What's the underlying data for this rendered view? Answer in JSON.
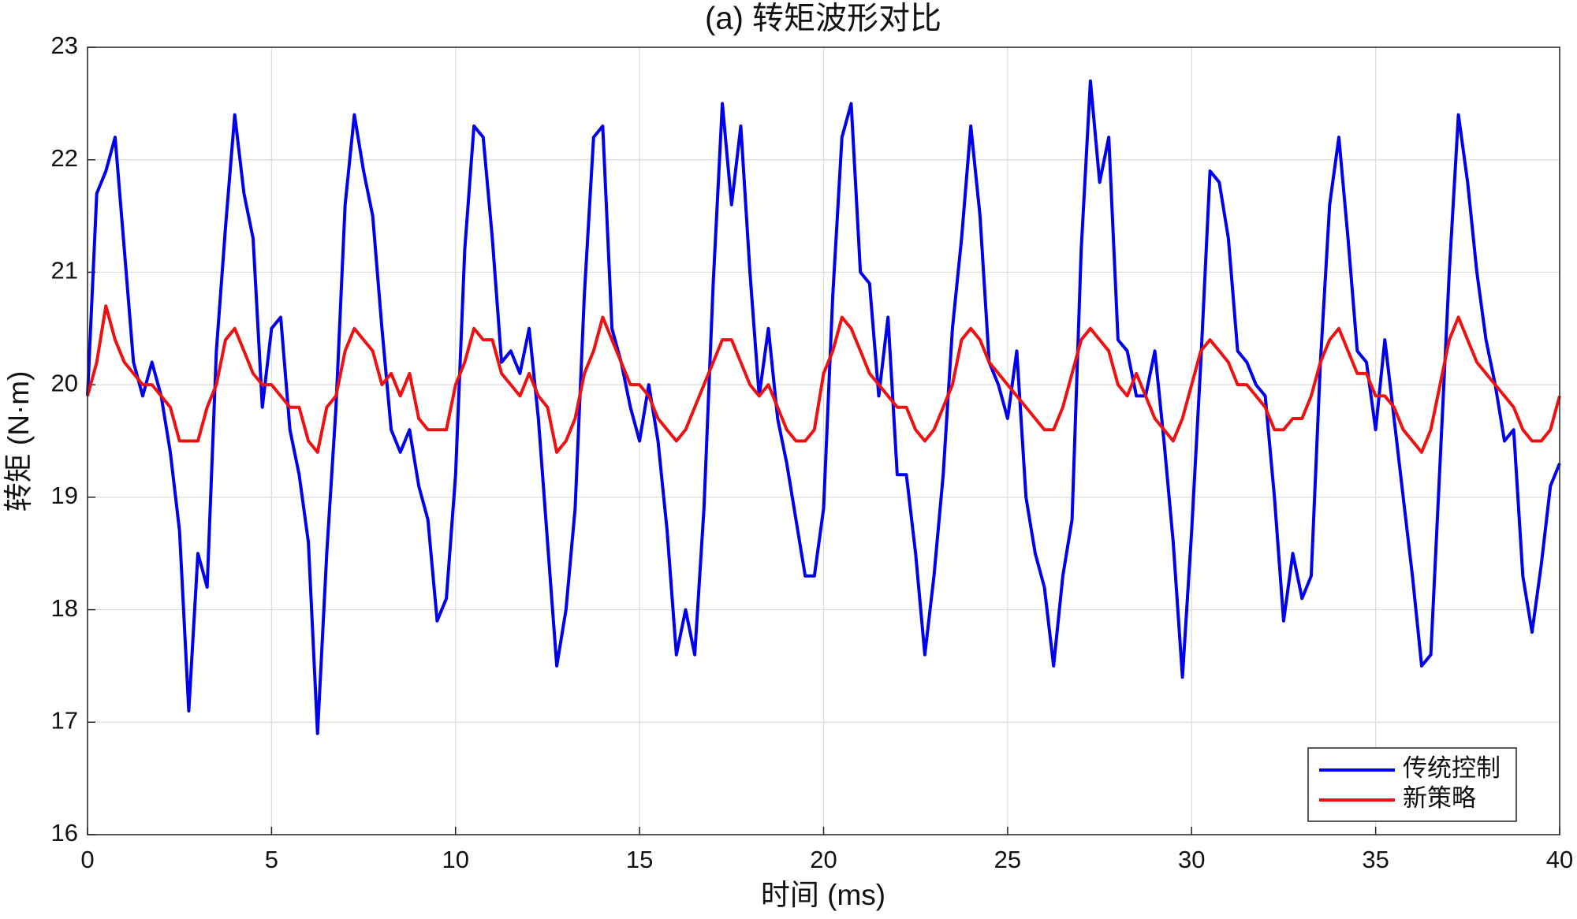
{
  "chart_data": {
    "type": "line",
    "title": "(a) 转矩波形对比",
    "xlabel": "时间 (ms)",
    "ylabel": "转矩 (N·m)",
    "x": [
      0,
      0.25,
      0.5,
      0.75,
      1,
      1.25,
      1.5,
      1.75,
      2,
      2.25,
      2.5,
      2.75,
      3,
      3.25,
      3.5,
      3.75,
      4,
      4.25,
      4.5,
      4.75,
      5,
      5.25,
      5.5,
      5.75,
      6,
      6.25,
      6.5,
      6.75,
      7,
      7.25,
      7.5,
      7.75,
      8,
      8.25,
      8.5,
      8.75,
      9,
      9.25,
      9.5,
      9.75,
      10,
      10.25,
      10.5,
      10.75,
      11,
      11.25,
      11.5,
      11.75,
      12,
      12.25,
      12.5,
      12.75,
      13,
      13.25,
      13.5,
      13.75,
      14,
      14.25,
      14.5,
      14.75,
      15,
      15.25,
      15.5,
      15.75,
      16,
      16.25,
      16.5,
      16.75,
      17,
      17.25,
      17.5,
      17.75,
      18,
      18.25,
      18.5,
      18.75,
      19,
      19.25,
      19.5,
      19.75,
      20,
      20.25,
      20.5,
      20.75,
      21,
      21.25,
      21.5,
      21.75,
      22,
      22.25,
      22.5,
      22.75,
      23,
      23.25,
      23.5,
      23.75,
      24,
      24.25,
      24.5,
      24.75,
      25,
      25.25,
      25.5,
      25.75,
      26,
      26.25,
      26.5,
      26.75,
      27,
      27.25,
      27.5,
      27.75,
      28,
      28.25,
      28.5,
      28.75,
      29,
      29.25,
      29.5,
      29.75,
      30,
      30.25,
      30.5,
      30.75,
      31,
      31.25,
      31.5,
      31.75,
      32,
      32.25,
      32.5,
      32.75,
      33,
      33.25,
      33.5,
      33.75,
      34,
      34.25,
      34.5,
      34.75,
      35,
      35.25,
      35.5,
      35.75,
      36,
      36.25,
      36.5,
      36.75,
      37,
      37.25,
      37.5,
      37.75,
      38,
      38.25,
      38.5,
      38.75,
      39,
      39.25,
      39.5,
      39.75,
      40
    ],
    "series": [
      {
        "name": "传统控制",
        "color": "#0000ee",
        "values": [
          19.9,
          21.7,
          21.9,
          22.2,
          21.2,
          20.2,
          19.9,
          20.2,
          19.9,
          19.4,
          18.7,
          17.1,
          18.5,
          18.2,
          20.3,
          21.4,
          22.4,
          21.7,
          21.3,
          19.8,
          20.5,
          20.6,
          19.6,
          19.2,
          18.6,
          16.9,
          18.5,
          19.8,
          21.6,
          22.4,
          21.9,
          21.5,
          20.5,
          19.6,
          19.4,
          19.6,
          19.1,
          18.8,
          17.9,
          18.1,
          19.2,
          21.2,
          22.3,
          22.2,
          21.3,
          20.2,
          20.3,
          20.1,
          20.5,
          19.7,
          18.6,
          17.5,
          18.0,
          18.9,
          20.8,
          22.2,
          22.3,
          20.5,
          20.2,
          19.8,
          19.5,
          20.0,
          19.5,
          18.7,
          17.6,
          18.0,
          17.6,
          18.9,
          20.9,
          22.5,
          21.6,
          22.3,
          21.0,
          19.9,
          20.5,
          19.7,
          19.3,
          18.8,
          18.3,
          18.3,
          18.9,
          20.8,
          22.2,
          22.5,
          21.0,
          20.9,
          19.9,
          20.6,
          19.2,
          19.2,
          18.5,
          17.6,
          18.3,
          19.2,
          20.5,
          21.3,
          22.3,
          21.5,
          20.2,
          20.0,
          19.7,
          20.3,
          19.0,
          18.5,
          18.2,
          17.5,
          18.3,
          18.8,
          21.2,
          22.7,
          21.8,
          22.2,
          20.4,
          20.3,
          19.9,
          19.9,
          20.3,
          19.5,
          18.6,
          17.4,
          18.7,
          20.2,
          21.9,
          21.8,
          21.3,
          20.3,
          20.2,
          20.0,
          19.9,
          19.0,
          17.9,
          18.5,
          18.1,
          18.3,
          20.2,
          21.6,
          22.2,
          21.3,
          20.3,
          20.2,
          19.6,
          20.4,
          19.7,
          19.0,
          18.3,
          17.5,
          17.6,
          19.3,
          21.0,
          22.4,
          21.8,
          21.0,
          20.4,
          20.0,
          19.5,
          19.6,
          18.3,
          17.8,
          18.4,
          19.1,
          19.3
        ]
      },
      {
        "name": "新策略",
        "color": "#ee1111",
        "values": [
          19.9,
          20.2,
          20.7,
          20.4,
          20.2,
          20.1,
          20.0,
          20.0,
          19.9,
          19.8,
          19.5,
          19.5,
          19.5,
          19.8,
          20.0,
          20.4,
          20.5,
          20.3,
          20.1,
          20.0,
          20.0,
          19.9,
          19.8,
          19.8,
          19.5,
          19.4,
          19.8,
          19.9,
          20.3,
          20.5,
          20.4,
          20.3,
          20.0,
          20.1,
          19.9,
          20.1,
          19.7,
          19.6,
          19.6,
          19.6,
          20.0,
          20.2,
          20.5,
          20.4,
          20.4,
          20.1,
          20.0,
          19.9,
          20.1,
          19.9,
          19.8,
          19.4,
          19.5,
          19.7,
          20.1,
          20.3,
          20.6,
          20.4,
          20.2,
          20.0,
          20.0,
          19.9,
          19.7,
          19.6,
          19.5,
          19.6,
          19.8,
          20.0,
          20.2,
          20.4,
          20.4,
          20.2,
          20.0,
          19.9,
          20.0,
          19.8,
          19.6,
          19.5,
          19.5,
          19.6,
          20.1,
          20.3,
          20.6,
          20.5,
          20.3,
          20.1,
          20.0,
          19.9,
          19.8,
          19.8,
          19.6,
          19.5,
          19.6,
          19.8,
          20.0,
          20.4,
          20.5,
          20.4,
          20.2,
          20.1,
          20.0,
          19.9,
          19.8,
          19.7,
          19.6,
          19.6,
          19.8,
          20.1,
          20.4,
          20.5,
          20.4,
          20.3,
          20.0,
          19.9,
          20.1,
          19.9,
          19.7,
          19.6,
          19.5,
          19.7,
          20.0,
          20.3,
          20.4,
          20.3,
          20.2,
          20.0,
          20.0,
          19.9,
          19.8,
          19.6,
          19.6,
          19.7,
          19.7,
          19.9,
          20.2,
          20.4,
          20.5,
          20.3,
          20.1,
          20.1,
          19.9,
          19.9,
          19.8,
          19.6,
          19.5,
          19.4,
          19.6,
          20.0,
          20.4,
          20.6,
          20.4,
          20.2,
          20.1,
          20.0,
          19.9,
          19.8,
          19.6,
          19.5,
          19.5,
          19.6,
          19.9
        ]
      }
    ],
    "xlim": [
      0,
      40
    ],
    "xticks": [
      0,
      5,
      10,
      15,
      20,
      25,
      30,
      35,
      40
    ],
    "ylim": [
      16,
      23
    ],
    "yticks": [
      16,
      17,
      18,
      19,
      20,
      21,
      22,
      23
    ],
    "grid": true,
    "legend": "southeast"
  }
}
